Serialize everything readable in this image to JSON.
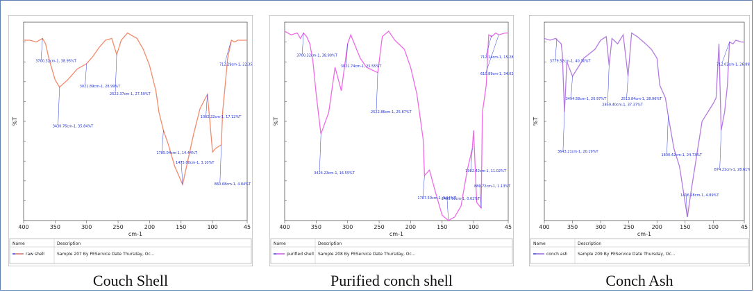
{
  "chart_data": [
    {
      "type": "line",
      "caption": "Couch Shell",
      "xlabel": "cm-1",
      "ylabel": "%T",
      "xlim": [
        4000,
        450
      ],
      "ylim": [
        0,
        110
      ],
      "xticks": [
        4000,
        3500,
        3000,
        2500,
        2000,
        1500,
        1000,
        450
      ],
      "xtick_labels": [
        "400",
        "350",
        "300",
        "250",
        "200",
        "150",
        "100",
        "45"
      ],
      "line_color": "#f28a6b",
      "legend_headers": [
        "Name",
        "Description"
      ],
      "legend_name": "raw shell",
      "legend_desc": "Sample 207 By PEService Date Thursday, Oc...",
      "series": [
        {
          "x": [
            4000,
            3900,
            3800,
            3700,
            3650,
            3600,
            3500,
            3430,
            3300,
            3150,
            3000,
            2900,
            2800,
            2700,
            2600,
            2522,
            2450,
            2350,
            2200,
            2100,
            2000,
            1900,
            1850,
            1780,
            1700,
            1600,
            1475,
            1400,
            1300,
            1200,
            1082,
            1050,
            1000,
            950,
            860,
            840,
            800,
            760,
            700,
            650,
            600,
            500,
            450
          ],
          "y": [
            100,
            100,
            99,
            101,
            98,
            90,
            78,
            74,
            78,
            84,
            87,
            91,
            96,
            100,
            101,
            92,
            100,
            104,
            101,
            95,
            86,
            72,
            60,
            50,
            42,
            30,
            20,
            32,
            48,
            62,
            70,
            58,
            38,
            40,
            42,
            60,
            75,
            90,
            100,
            99,
            100,
            100,
            100
          ]
        }
      ],
      "peaks": [
        {
          "x": 3700,
          "y": 101,
          "label": "3700.32cm-1, 38.95%T"
        },
        {
          "x": 3430,
          "y": 74,
          "label": "3430.76cm-1, 35.84%T"
        },
        {
          "x": 3000,
          "y": 87,
          "label": "3021.89cm-1, 28.99%T"
        },
        {
          "x": 2522,
          "y": 92,
          "label": "2522.37cm-1, 27.59%T"
        },
        {
          "x": 1780,
          "y": 50,
          "label": "1785.04cm-1, 14.44%T"
        },
        {
          "x": 1475,
          "y": 20,
          "label": "1475.00cm-1, 3.10%T"
        },
        {
          "x": 1082,
          "y": 70,
          "label": "1082.22cm-1, 17.12%T"
        },
        {
          "x": 860,
          "y": 42,
          "label": "860.68cm-1, 4.84%T"
        },
        {
          "x": 712,
          "y": 99,
          "label": "712.29cm-1, 22.35%T"
        }
      ]
    },
    {
      "type": "line",
      "caption": "Purified conch shell",
      "xlabel": "cm-1",
      "ylabel": "%T",
      "xlim": [
        4000,
        450
      ],
      "ylim": [
        0,
        110
      ],
      "xticks": [
        4000,
        3500,
        3000,
        2500,
        2000,
        1500,
        1000,
        450
      ],
      "xtick_labels": [
        "400",
        "350",
        "300",
        "250",
        "200",
        "150",
        "100",
        "45"
      ],
      "line_color": "#ee6ae6",
      "legend_headers": [
        "Name",
        "Description"
      ],
      "legend_name": "purified shell",
      "legend_desc": "Sample 208 By PEService Date Thursday, Oc...",
      "series": [
        {
          "x": [
            4000,
            3900,
            3800,
            3750,
            3700,
            3650,
            3600,
            3550,
            3500,
            3424,
            3300,
            3200,
            3100,
            3000,
            2950,
            2800,
            2700,
            2522,
            2450,
            2350,
            2250,
            2100,
            2000,
            1900,
            1800,
            1780,
            1700,
            1600,
            1500,
            1400,
            1300,
            1200,
            1100,
            1020,
            1000,
            950,
            880,
            860,
            800,
            760,
            712,
            650,
            600,
            500,
            450
          ],
          "y": [
            105,
            103,
            104,
            101,
            104,
            102,
            98,
            88,
            70,
            48,
            60,
            85,
            72,
            98,
            103,
            90,
            85,
            82,
            102,
            105,
            100,
            95,
            85,
            70,
            45,
            25,
            28,
            15,
            3,
            0,
            2,
            8,
            28,
            40,
            50,
            10,
            7,
            60,
            75,
            103,
            102,
            104,
            103,
            104,
            104
          ]
        }
      ],
      "peaks": [
        {
          "x": 3700,
          "y": 104,
          "label": "3700.32cm-1, 38.90%T"
        },
        {
          "x": 3424,
          "y": 48,
          "label": "3424.23cm-1, 16.55%T"
        },
        {
          "x": 3000,
          "y": 98,
          "label": "3021.74cm-1, 25.55%T"
        },
        {
          "x": 2522,
          "y": 82,
          "label": "2522.86cm-1, 25.87%T"
        },
        {
          "x": 1780,
          "y": 25,
          "label": "1787.50cm-1, 9.14%T"
        },
        {
          "x": 1400,
          "y": 0,
          "label": "1461.98cm-1, 0.02%T"
        },
        {
          "x": 1020,
          "y": 40,
          "label": "1082.42cm-1, 11.02%T"
        },
        {
          "x": 880,
          "y": 7,
          "label": "880.72cm-1, 1.13%T"
        },
        {
          "x": 712,
          "y": 103,
          "label": "712.14cm-1, 15.28%T"
        },
        {
          "x": 600,
          "y": 103,
          "label": "610.89cm-1, 34.02"
        }
      ]
    },
    {
      "type": "line",
      "caption": "Conch Ash",
      "xlabel": "cm-1",
      "ylabel": "%T",
      "xlim": [
        4000,
        450
      ],
      "ylim": [
        0,
        110
      ],
      "xticks": [
        4000,
        3500,
        3000,
        2500,
        2000,
        1500,
        1000,
        450
      ],
      "xtick_labels": [
        "400",
        "350",
        "300",
        "250",
        "200",
        "150",
        "100",
        "45"
      ],
      "line_color": "#b57ae0",
      "legend_headers": [
        "Name",
        "Description"
      ],
      "legend_name": "conch ash",
      "legend_desc": "Sample 209 By PEService Date Thursday, Oc...",
      "series": [
        {
          "x": [
            4000,
            3900,
            3800,
            3700,
            3680,
            3643,
            3600,
            3500,
            3400,
            3300,
            3100,
            3000,
            2900,
            2850,
            2800,
            2700,
            2600,
            2513,
            2450,
            2350,
            2200,
            2100,
            2000,
            1950,
            1850,
            1800,
            1700,
            1600,
            1500,
            1460,
            1400,
            1300,
            1200,
            1100,
            1000,
            950,
            900,
            860,
            800,
            750,
            712,
            650,
            600,
            500,
            450
          ],
          "y": [
            101,
            100,
            101,
            98,
            92,
            60,
            88,
            80,
            85,
            90,
            95,
            100,
            102,
            86,
            101,
            98,
            103,
            80,
            104,
            102,
            98,
            95,
            90,
            75,
            68,
            58,
            40,
            30,
            10,
            2,
            15,
            35,
            55,
            60,
            65,
            68,
            98,
            50,
            60,
            75,
            99,
            98,
            100,
            99,
            99
          ]
        }
      ],
      "peaks": [
        {
          "x": 3779,
          "y": 101,
          "label": "3779.52cm-1, 40.30%T"
        },
        {
          "x": 3643,
          "y": 60,
          "label": "3643.21cm-1, 20.19%T"
        },
        {
          "x": 3500,
          "y": 80,
          "label": "3494.58cm-1, 20.97%T"
        },
        {
          "x": 2850,
          "y": 86,
          "label": "2859.40cm-1, 37.37%T"
        },
        {
          "x": 2513,
          "y": 80,
          "label": "2513.84cm-1, 28.96%T"
        },
        {
          "x": 1800,
          "y": 58,
          "label": "1800.42cm-1, 24.73%T"
        },
        {
          "x": 1460,
          "y": 2,
          "label": "1416.28cm-1, 4.89%T"
        },
        {
          "x": 860,
          "y": 50,
          "label": "874.21cm-1, 28.61%T"
        },
        {
          "x": 712,
          "y": 99,
          "label": "712.02cm-1, 26.89%T"
        }
      ]
    }
  ]
}
